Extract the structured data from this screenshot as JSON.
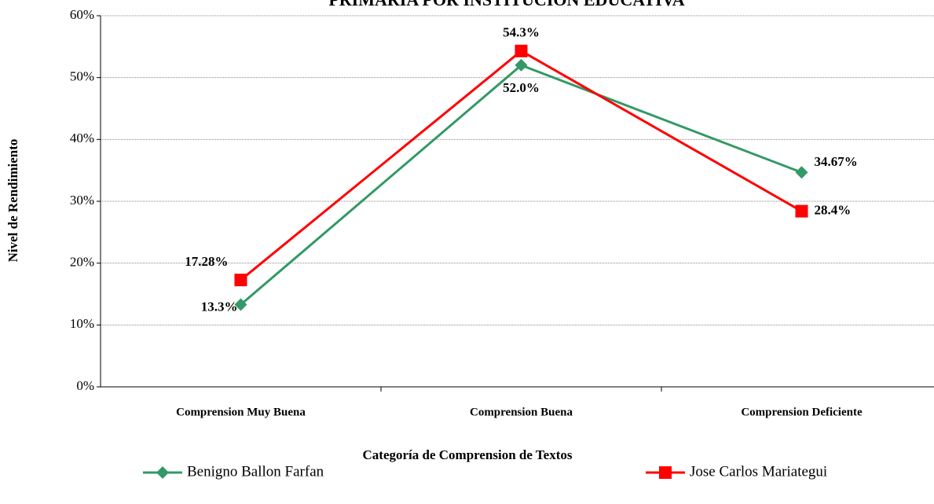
{
  "chart_data": {
    "type": "line",
    "title": "PRIMARIA POR INSTITUCION  EDUCATIVA",
    "x_label": "Categoría de Comprension de Textos",
    "y_label": "Nivel de Rendimiento",
    "categories": [
      "Comprension Muy Buena",
      "Comprension  Buena",
      "Comprension Deficiente"
    ],
    "series": [
      {
        "name": "Benigno Ballon Farfan",
        "color": "#339966",
        "marker": "diamond",
        "values": [
          13.3,
          52.0,
          34.67
        ],
        "value_labels": [
          "13.3%",
          "52.0%",
          "34.67%"
        ]
      },
      {
        "name": "Jose Carlos Mariategui",
        "color": "#ff0000",
        "marker": "square",
        "values": [
          17.28,
          54.3,
          28.4
        ],
        "value_labels": [
          "17.28%",
          "54.3%",
          "28.4%"
        ]
      }
    ],
    "ylim": [
      0,
      60
    ],
    "yticks": [
      {
        "value": 0,
        "label": "0%"
      },
      {
        "value": 10,
        "label": "10%"
      },
      {
        "value": 20,
        "label": "20%"
      },
      {
        "value": 30,
        "label": "30%"
      },
      {
        "value": 40,
        "label": "40%"
      },
      {
        "value": 50,
        "label": "50%"
      },
      {
        "value": 60,
        "label": "60%"
      }
    ],
    "grid": true,
    "legend": "bottom"
  }
}
